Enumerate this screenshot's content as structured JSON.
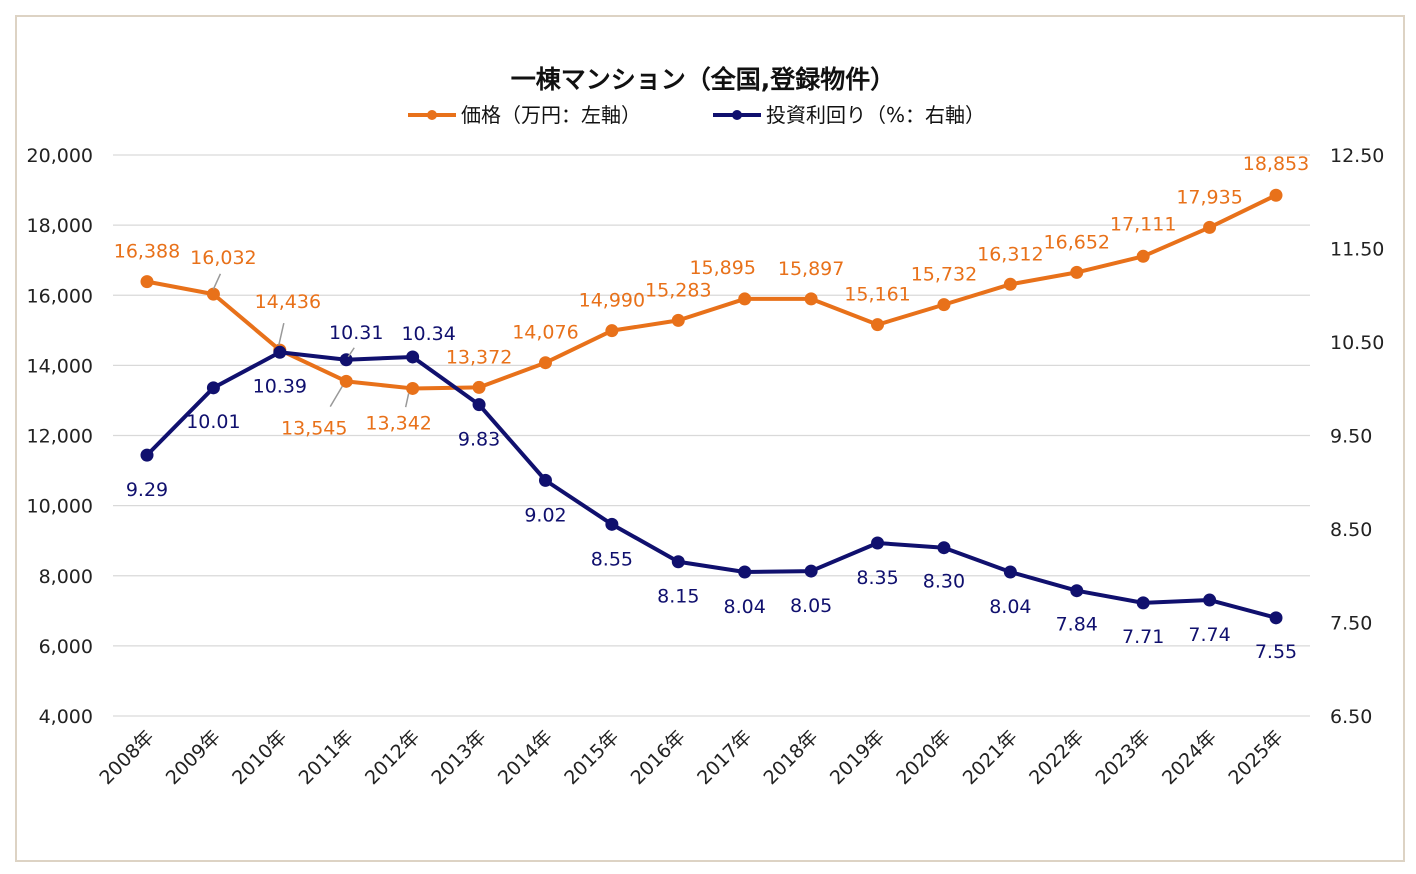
{
  "chart_data": {
    "type": "line",
    "title": "一棟マンション（全国,登録物件）",
    "categories": [
      "2008年",
      "2009年",
      "2010年",
      "2011年",
      "2012年",
      "2013年",
      "2014年",
      "2015年",
      "2016年",
      "2017年",
      "2018年",
      "2019年",
      "2020年",
      "2021年",
      "2022年",
      "2023年",
      "2024年",
      "2025年"
    ],
    "series": [
      {
        "name": "価格（万円：左軸）",
        "axis": "left",
        "color": "#E8711A",
        "values": [
          16388,
          16032,
          14436,
          13545,
          13342,
          13372,
          14076,
          14990,
          15283,
          15895,
          15897,
          15161,
          15732,
          16312,
          16652,
          17111,
          17935,
          18853
        ],
        "labels": [
          "16,388",
          "16,032",
          "14,436",
          "13,545",
          "13,342",
          "13,372",
          "14,076",
          "14,990",
          "15,283",
          "15,895",
          "15,897",
          "15,161",
          "15,732",
          "16,312",
          "16,652",
          "17,111",
          "17,935",
          "18,853"
        ]
      },
      {
        "name": "投資利回り（%：右軸）",
        "axis": "right",
        "color": "#10106E",
        "values": [
          9.29,
          10.01,
          10.39,
          10.31,
          10.34,
          9.83,
          9.02,
          8.55,
          8.15,
          8.04,
          8.05,
          8.35,
          8.3,
          8.04,
          7.84,
          7.71,
          7.74,
          7.55
        ],
        "labels": [
          "9.29",
          "10.01",
          "10.39",
          "10.31",
          "10.34",
          "9.83",
          "9.02",
          "8.55",
          "8.15",
          "8.04",
          "8.05",
          "8.35",
          "8.30",
          "8.04",
          "7.84",
          "7.71",
          "7.74",
          "7.55"
        ]
      }
    ],
    "left_axis": {
      "range": [
        4000,
        20000
      ],
      "ticks": [
        "4,000",
        "6,000",
        "8,000",
        "10,000",
        "12,000",
        "14,000",
        "16,000",
        "18,000",
        "20,000"
      ]
    },
    "right_axis": {
      "range": [
        6.5,
        12.5
      ],
      "ticks": [
        "6.50",
        "7.50",
        "8.50",
        "9.50",
        "10.50",
        "11.50",
        "12.50"
      ]
    },
    "grid": true,
    "legend_position": "top"
  }
}
